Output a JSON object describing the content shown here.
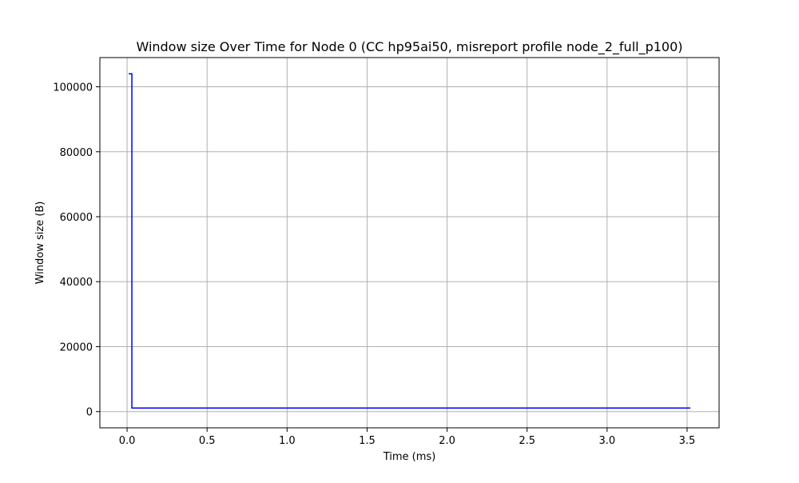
{
  "chart_data": {
    "type": "line",
    "title": "Window size Over Time for Node 0 (CC hp95ai50, misreport profile node_2_full_p100)",
    "xlabel": "Time (ms)",
    "ylabel": "Window size (B)",
    "xlim": [
      -0.17,
      3.7
    ],
    "ylim": [
      -5000,
      109000
    ],
    "x_ticks": [
      0.0,
      0.5,
      1.0,
      1.5,
      2.0,
      2.5,
      3.0,
      3.5
    ],
    "x_tick_labels": [
      "0.0",
      "0.5",
      "1.0",
      "1.5",
      "2.0",
      "2.5",
      "3.0",
      "3.5"
    ],
    "y_ticks": [
      0,
      20000,
      40000,
      60000,
      80000,
      100000
    ],
    "y_tick_labels": [
      "0",
      "20000",
      "40000",
      "60000",
      "80000",
      "100000"
    ],
    "grid": true,
    "step": "post",
    "series": [
      {
        "color": "#0000ff",
        "x": [
          0.01,
          0.03,
          3.52
        ],
        "y": [
          104000,
          1100,
          1100
        ]
      }
    ]
  }
}
